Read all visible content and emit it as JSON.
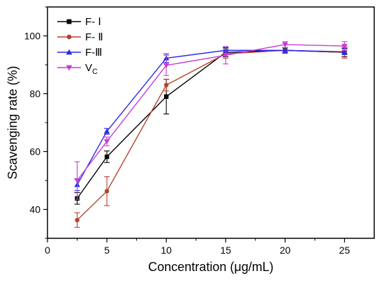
{
  "chart_data": {
    "type": "line",
    "xlabel": "Concentration (μg/mL)",
    "ylabel": "Scavenging rate (%)",
    "xlim": [
      0,
      27.5
    ],
    "ylim": [
      30,
      110
    ],
    "xticks": [
      0,
      5,
      10,
      15,
      20,
      25
    ],
    "yticks": [
      40,
      60,
      80,
      100
    ],
    "x": [
      2.5,
      5,
      10,
      15,
      20,
      25
    ],
    "legend_position": "top-left",
    "grid": false,
    "series": [
      {
        "name": "F- Ⅰ",
        "color": "#000000",
        "marker": "square",
        "values": [
          43.8,
          58.2,
          79.0,
          94.3,
          95.0,
          94.3
        ],
        "errors": [
          2.0,
          2.0,
          6.0,
          1.5,
          1.0,
          1.5
        ]
      },
      {
        "name": "F- Ⅱ",
        "color": "#b5432b",
        "marker": "circle",
        "values": [
          36.3,
          46.3,
          83.0,
          93.8,
          95.0,
          94.3
        ],
        "errors": [
          2.5,
          5.0,
          2.0,
          1.5,
          1.0,
          2.0
        ]
      },
      {
        "name": "F-Ⅲ",
        "color": "#2a2ae8",
        "marker": "triangle-up",
        "values": [
          48.5,
          67.0,
          92.3,
          95.0,
          95.0,
          94.5
        ],
        "errors": [
          2.0,
          1.0,
          1.5,
          1.0,
          1.0,
          1.0
        ]
      },
      {
        "name": "V",
        "name_sub": "C",
        "color": "#c83bd6",
        "marker": "triangle-down",
        "values": [
          50.0,
          63.5,
          89.8,
          93.3,
          97.0,
          96.5
        ],
        "errors": [
          6.5,
          1.5,
          3.5,
          3.0,
          1.0,
          1.5
        ]
      }
    ]
  }
}
